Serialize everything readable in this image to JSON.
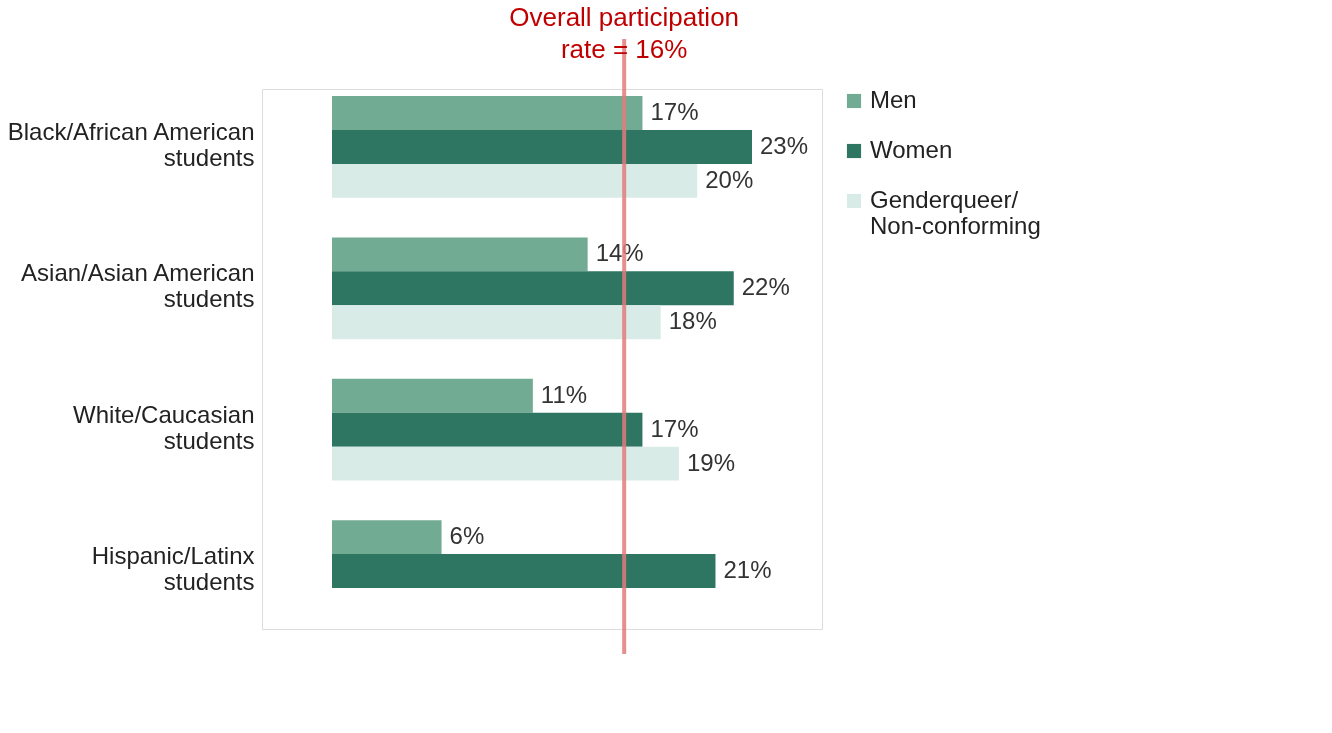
{
  "chart_data": {
    "type": "bar",
    "orientation": "horizontal",
    "categories": [
      "Black/African American students",
      "Asian/Asian American students",
      "White/Caucasian students",
      "Hispanic/Latinx students"
    ],
    "series": [
      {
        "name": "Men",
        "color": "#72ab93",
        "values": [
          17,
          14,
          11,
          6
        ],
        "value_labels": [
          "17%",
          "14%",
          "11%",
          "6%"
        ]
      },
      {
        "name": "Women",
        "color": "#2e7662",
        "values": [
          23,
          22,
          17,
          21
        ],
        "value_labels": [
          "23%",
          "22%",
          "17%",
          "21%"
        ]
      },
      {
        "name": "Genderqueer/Non-conforming",
        "color": "#d9ebe7",
        "values": [
          20,
          18,
          19,
          null
        ],
        "value_labels": [
          "20%",
          "18%",
          "19%",
          null
        ]
      }
    ],
    "tick_labels": "y",
    "legend": "right",
    "ref_lines": [
      {
        "axis": "x",
        "value": 16,
        "label": "Overall participation rate = 16%",
        "color": "#e07b7b"
      }
    ]
  }
}
